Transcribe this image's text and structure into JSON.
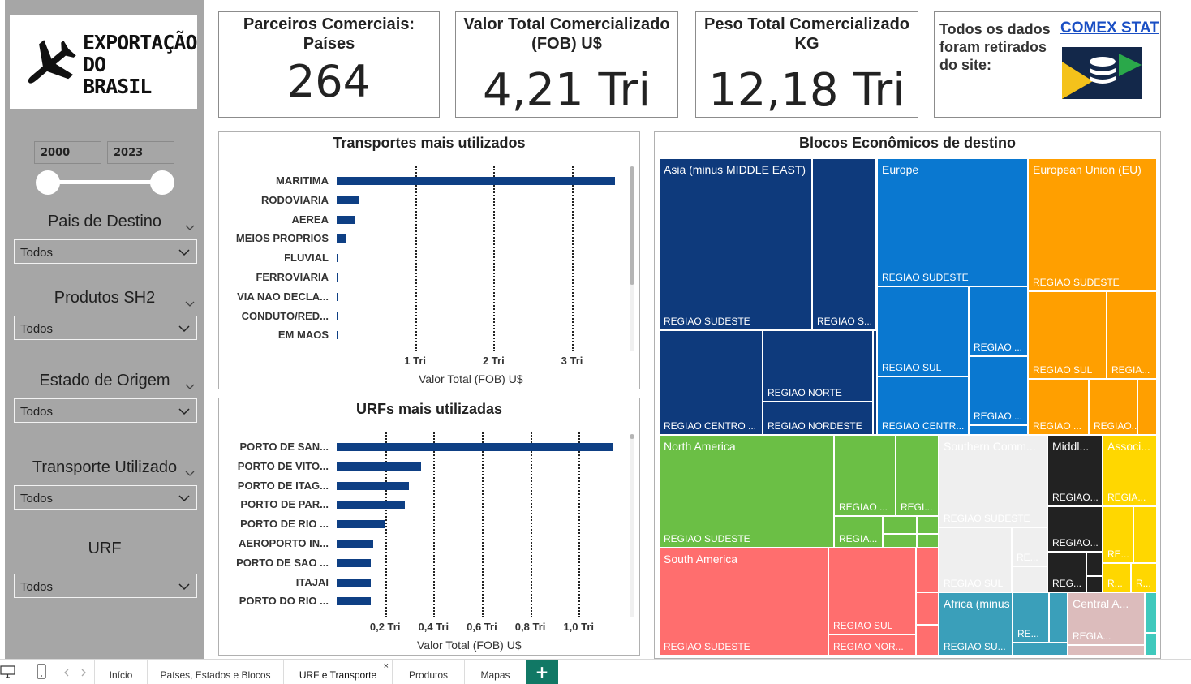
{
  "logo": {
    "line1": "EXPORTAÇÃO",
    "line2": "DO",
    "line3": "BRASIL"
  },
  "filters": {
    "year_start": "2000",
    "year_end": "2023",
    "pais": {
      "title": "Pais de Destino",
      "value": "Todos"
    },
    "produtos": {
      "title": "Produtos SH2",
      "value": "Todos"
    },
    "estado": {
      "title": "Estado de Origem",
      "value": "Todos"
    },
    "transporte": {
      "title": "Transporte Utilizado",
      "value": "Todos"
    },
    "urf": {
      "title": "URF",
      "value": "Todos"
    }
  },
  "kpis": {
    "parceiros": {
      "title": "Parceiros Comerciais: Países",
      "value": "264"
    },
    "valor": {
      "title_line1": "Valor Total Comercializado",
      "title_line2": "(FOB) U$",
      "value": "4,21 Tri"
    },
    "peso": {
      "title_line1": "Peso Total Comercializado",
      "title_line2": "KG",
      "value": "12,18 Tri"
    },
    "fonte": {
      "line1": "Todos os dados",
      "line2": "foram retirados",
      "line3": "do site:",
      "link": "COMEX STAT"
    }
  },
  "chart_data": [
    {
      "type": "bar",
      "title": "Transportes mais utilizados",
      "xlabel": "Valor Total (FOB) U$",
      "categories": [
        "MARITIMA",
        "RODOVIARIA",
        "AEREA",
        "MEIOS PROPRIOS",
        "FLUVIAL",
        "FERROVIARIA",
        "VIA NAO DECLA...",
        "CONDUTO/RED...",
        "EM MAOS"
      ],
      "values": [
        3.55,
        0.28,
        0.24,
        0.11,
        0.02,
        0.01,
        0.01,
        0.01,
        0.01
      ],
      "xticks": [
        "1 Tri",
        "2 Tri",
        "3 Tri"
      ],
      "xtick_values": [
        1,
        2,
        3
      ],
      "xlim": [
        0,
        3.6
      ],
      "color": "#0e3f84"
    },
    {
      "type": "bar",
      "title": "URFs mais utilizadas",
      "xlabel": "Valor Total (FOB) U$",
      "categories": [
        "PORTO DE SAN...",
        "PORTO DE VITO...",
        "PORTO DE ITAG...",
        "PORTO DE PAR...",
        "PORTO DE RIO ...",
        "AEROPORTO IN...",
        "PORTO DE SAO ...",
        "ITAJAI",
        "PORTO DO RIO ..."
      ],
      "values": [
        1.14,
        0.35,
        0.3,
        0.28,
        0.2,
        0.15,
        0.14,
        0.14,
        0.14
      ],
      "xticks": [
        "0,2 Tri",
        "0,4 Tri",
        "0,6 Tri",
        "0,8 Tri",
        "1,0 Tri"
      ],
      "xtick_values": [
        0.2,
        0.4,
        0.6,
        0.8,
        1.0
      ],
      "xlim": [
        0,
        1.14
      ],
      "color": "#0e3f84"
    }
  ],
  "treemap": {
    "title": "Blocos Econômicos de destino",
    "blocks": [
      {
        "name": "Asia (minus MIDDLE EAST)",
        "color": "#0e3a7c",
        "subs": [
          "REGIAO SUDESTE",
          "REGIAO S...",
          "REGIAO CENTRO ...",
          "REGIAO NORTE",
          "REGIAO NORDESTE"
        ]
      },
      {
        "name": "Europe",
        "color": "#0a78d0",
        "subs": [
          "REGIAO SUDESTE",
          "REGIAO SUL",
          "REGIAO ...",
          "REGIAO CENTR...",
          "REGIAO ..."
        ]
      },
      {
        "name": "European Union (EU)",
        "color": "#ff9f00",
        "subs": [
          "REGIAO SUDESTE",
          "REGIAO SUL",
          "REGIA...",
          "REGIAO ...",
          "REGIAO..."
        ]
      },
      {
        "name": "North America",
        "color": "#6bbf45",
        "subs": [
          "REGIAO SUDESTE",
          "REGIAO ...",
          "REGI...",
          "REGIA..."
        ]
      },
      {
        "name": "Southern Comm...",
        "color": "#efefef",
        "subs": [
          "REGIAO SUDESTE",
          "REGIAO SUL",
          "RE..."
        ]
      },
      {
        "name": "Middl...",
        "color": "#222222",
        "subs": [
          "REGIAO...",
          "REGIAO...",
          "REG..."
        ]
      },
      {
        "name": "Associ...",
        "color": "#ffd700",
        "subs": [
          "REGIA...",
          "RE...",
          "R...",
          "R..."
        ]
      },
      {
        "name": "South America",
        "color": "#ff6e6e",
        "subs": [
          "REGIAO SUDESTE",
          "REGIAO SUL",
          "REGIAO NOR..."
        ]
      },
      {
        "name": "Africa (minus MIDDL...",
        "color": "#3a9fba",
        "subs": [
          "REGIAO SU...",
          "RE..."
        ]
      },
      {
        "name": "Central A...",
        "color": "#dcbcbc",
        "subs": [
          "REGIA..."
        ]
      }
    ]
  },
  "tabs": [
    {
      "label": "Início"
    },
    {
      "label": "Países, Estados e Blocos"
    },
    {
      "label": "URF e Transporte",
      "active": true
    },
    {
      "label": "Produtos"
    },
    {
      "label": "Mapas"
    }
  ],
  "tab_add": "+",
  "tab_close": "×"
}
